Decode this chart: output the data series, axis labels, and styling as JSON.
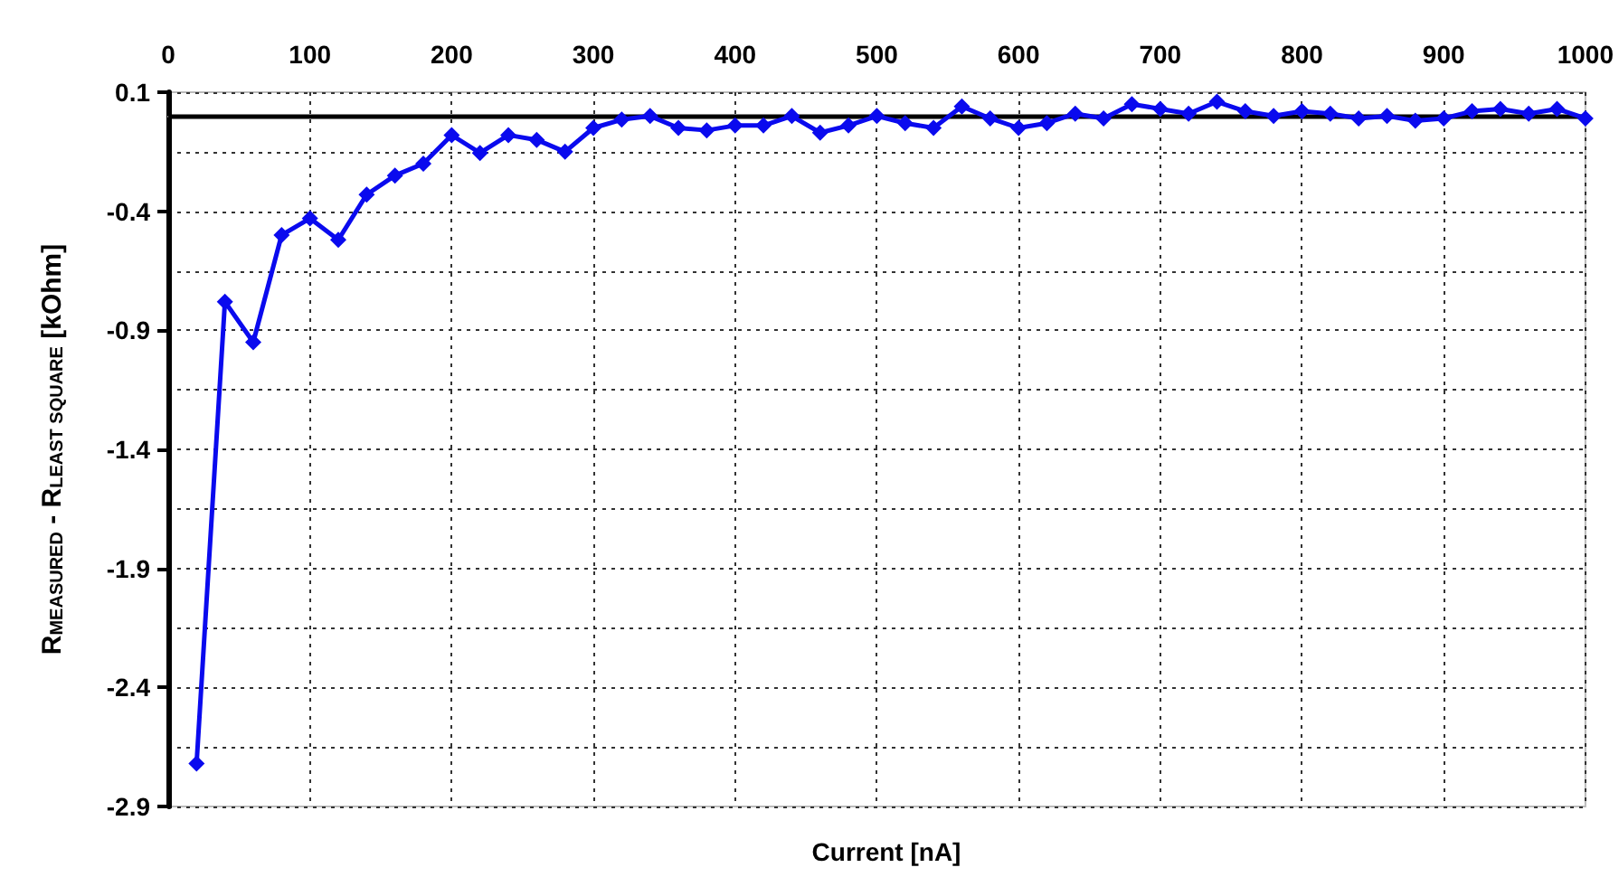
{
  "chart_data": {
    "type": "line",
    "xlabel": "Current [nA]",
    "ylabel": "R$_{MEASURED}$ - R$_{LEAST SQUARE}$ [kOhm]",
    "x": [
      20,
      40,
      60,
      80,
      100,
      120,
      140,
      160,
      180,
      200,
      220,
      240,
      260,
      280,
      300,
      320,
      340,
      360,
      380,
      400,
      420,
      440,
      460,
      480,
      500,
      520,
      540,
      560,
      580,
      600,
      620,
      640,
      660,
      680,
      700,
      720,
      740,
      760,
      780,
      800,
      820,
      840,
      860,
      880,
      900,
      920,
      940,
      960,
      980,
      1000
    ],
    "series": [
      {
        "color": "#0a0aee",
        "values": [
          -2.72,
          -0.78,
          -0.95,
          -0.5,
          -0.43,
          -0.52,
          -0.33,
          -0.25,
          -0.2,
          -0.08,
          -0.155,
          -0.08,
          -0.1,
          -0.15,
          -0.05,
          -0.015,
          0.0,
          -0.05,
          -0.06,
          -0.04,
          -0.04,
          0.0,
          -0.07,
          -0.04,
          0.0,
          -0.03,
          -0.05,
          0.04,
          -0.01,
          -0.05,
          -0.03,
          0.01,
          -0.01,
          0.05,
          0.03,
          0.01,
          0.06,
          0.02,
          0.0,
          0.02,
          0.01,
          -0.01,
          0.0,
          -0.02,
          -0.01,
          0.02,
          0.03,
          0.01,
          0.03,
          -0.01
        ]
      }
    ],
    "xlim": [
      0,
      1000
    ],
    "xticks": [
      0,
      100,
      200,
      300,
      400,
      500,
      600,
      700,
      800,
      900,
      1000
    ],
    "ylim": [
      -2.9,
      0.1
    ],
    "yticks": [
      -2.9,
      -2.4,
      -1.9,
      -1.4,
      -0.9,
      -0.4,
      0.1
    ],
    "ref_lines": [
      {
        "axis": "y",
        "value": 0,
        "color": "#000000",
        "line_style": "solid"
      }
    ],
    "grid": true,
    "marker": "diamond",
    "line_style": "solid"
  }
}
